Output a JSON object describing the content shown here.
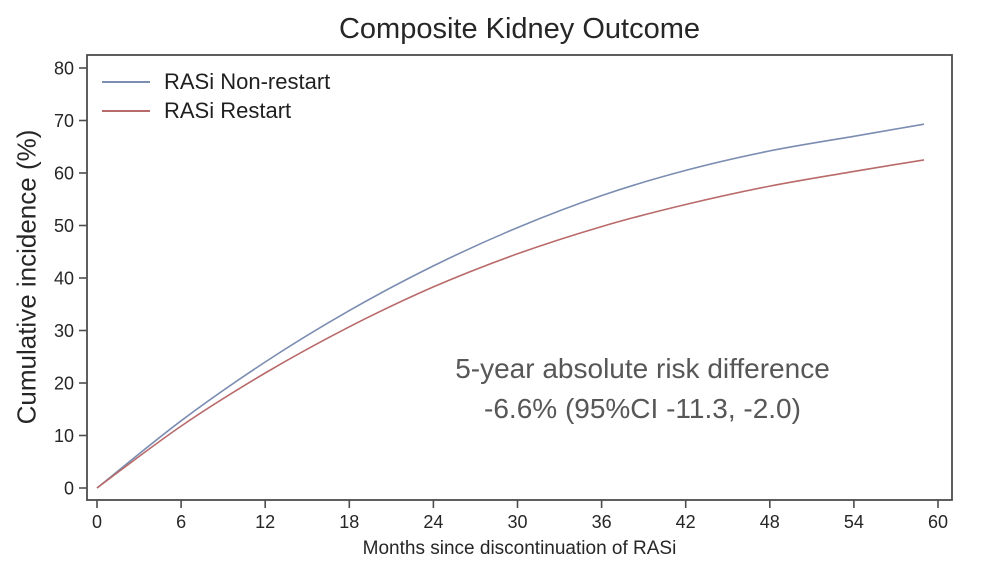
{
  "title": "Composite Kidney Outcome",
  "annotation": {
    "line1": "5-year absolute risk difference",
    "line2": "-6.6% (95%CI -11.3, -2.0)"
  },
  "axes": {
    "xlabel": "Months since discontinuation of RASi",
    "ylabel": "Cumulative incidence (%)"
  },
  "colors": {
    "non_restart_line": "#7b8db1",
    "restart_line": "#b96a6a",
    "frame": "#4d4d4d",
    "tick_text": "#262626",
    "annotation_text": "#575757"
  },
  "chart_data": {
    "type": "line",
    "title": "Composite Kidney Outcome",
    "xlabel": "Months since discontinuation of RASi",
    "ylabel": "Cumulative incidence (%)",
    "xlim": [
      0,
      60
    ],
    "ylim": [
      0,
      80
    ],
    "x_ticks": [
      0,
      6,
      12,
      18,
      24,
      30,
      36,
      42,
      48,
      54,
      60
    ],
    "y_ticks": [
      0,
      10,
      20,
      30,
      40,
      50,
      60,
      70,
      80
    ],
    "grid": false,
    "legend_position": "top-left-inside",
    "x": [
      0,
      6,
      12,
      18,
      24,
      30,
      36,
      42,
      48,
      54,
      59
    ],
    "series": [
      {
        "name": "RASi Non-restart",
        "color": "#7b8db1",
        "values": [
          0,
          12.8,
          24.0,
          33.8,
          42.3,
          49.6,
          55.7,
          60.5,
          64.2,
          67.0,
          69.3
        ]
      },
      {
        "name": "RASi Restart",
        "color": "#b96a6a",
        "values": [
          0,
          11.8,
          21.9,
          30.7,
          38.3,
          44.6,
          49.8,
          54.0,
          57.5,
          60.3,
          62.5
        ]
      }
    ],
    "annotation": "5-year absolute risk difference\n-6.6% (95%CI -11.3, -2.0)"
  }
}
